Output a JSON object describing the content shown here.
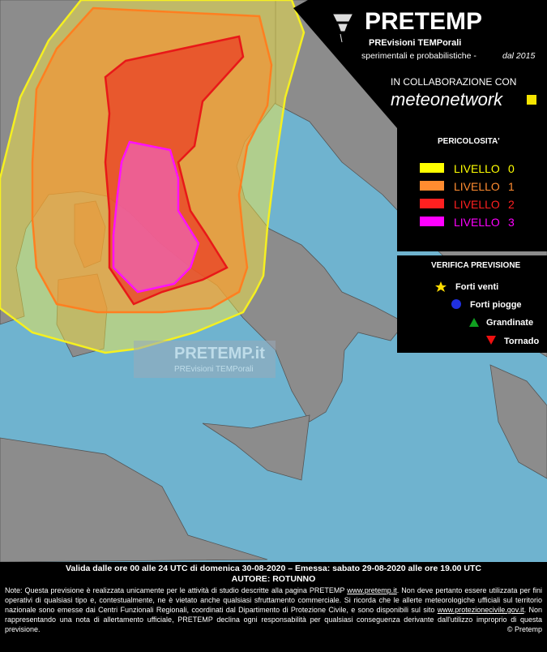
{
  "header": {
    "title": "PRETEMP",
    "subtitle": "PREvisioni TEMPorali",
    "tagline": "sperimentali e probabilistiche -",
    "since": "dal 2015",
    "collab": "IN COLLABORAZIONE CON",
    "partner": "meteonetwork"
  },
  "hazard_legend": {
    "title": "PERICOLOSITA'",
    "levels": [
      {
        "label": "LIVELLO",
        "level": "0"
      },
      {
        "label": "LIVELLO",
        "level": "1"
      },
      {
        "label": "LIVELLO",
        "level": "2"
      },
      {
        "label": "LIVELLO",
        "level": "3"
      }
    ]
  },
  "verification_legend": {
    "title": "VERIFICA PREVISIONE",
    "items": [
      "Forti venti",
      "Forti piogge",
      "Grandinate",
      "Tornado"
    ]
  },
  "watermark": {
    "title": "PRETEMP.it",
    "subtitle": "PREvisioni TEMPorali"
  },
  "footer": {
    "validity": "Valida dalle ore 00 alle 24 UTC di domenica 30-08-2020 – Emessa: sabato 29-08-2020 alle ore 19.00 UTC",
    "author": "AUTORE: ROTUNNO",
    "note": [
      "Note: Questa previsione è realizzata unicamente per le attività di studio descritte alla pagina PRETEMP ",
      "www.pretemp.it",
      ". Non deve pertanto essere utilizzata per fini operativi di qualsiasi tipo e, contestualmente, ne è vietato anche qualsiasi sfruttamento commerciale. Si ricorda che le allerte meteorologiche ufficiali sul territorio nazionale sono emesse dai Centri Funzionali Regionali, coordinati dal Dipartimento di Protezione Civile, e sono disponibili sul sito ",
      "www.protezionecivile.gov.it",
      ". Non rappresentando una nota di allertamento ufficiale, PRETEMP declina ogni responsabilità per qualsiasi conseguenza derivante dall'utilizzo improprio di questa previsione."
    ],
    "copyright": "© Pretemp"
  }
}
